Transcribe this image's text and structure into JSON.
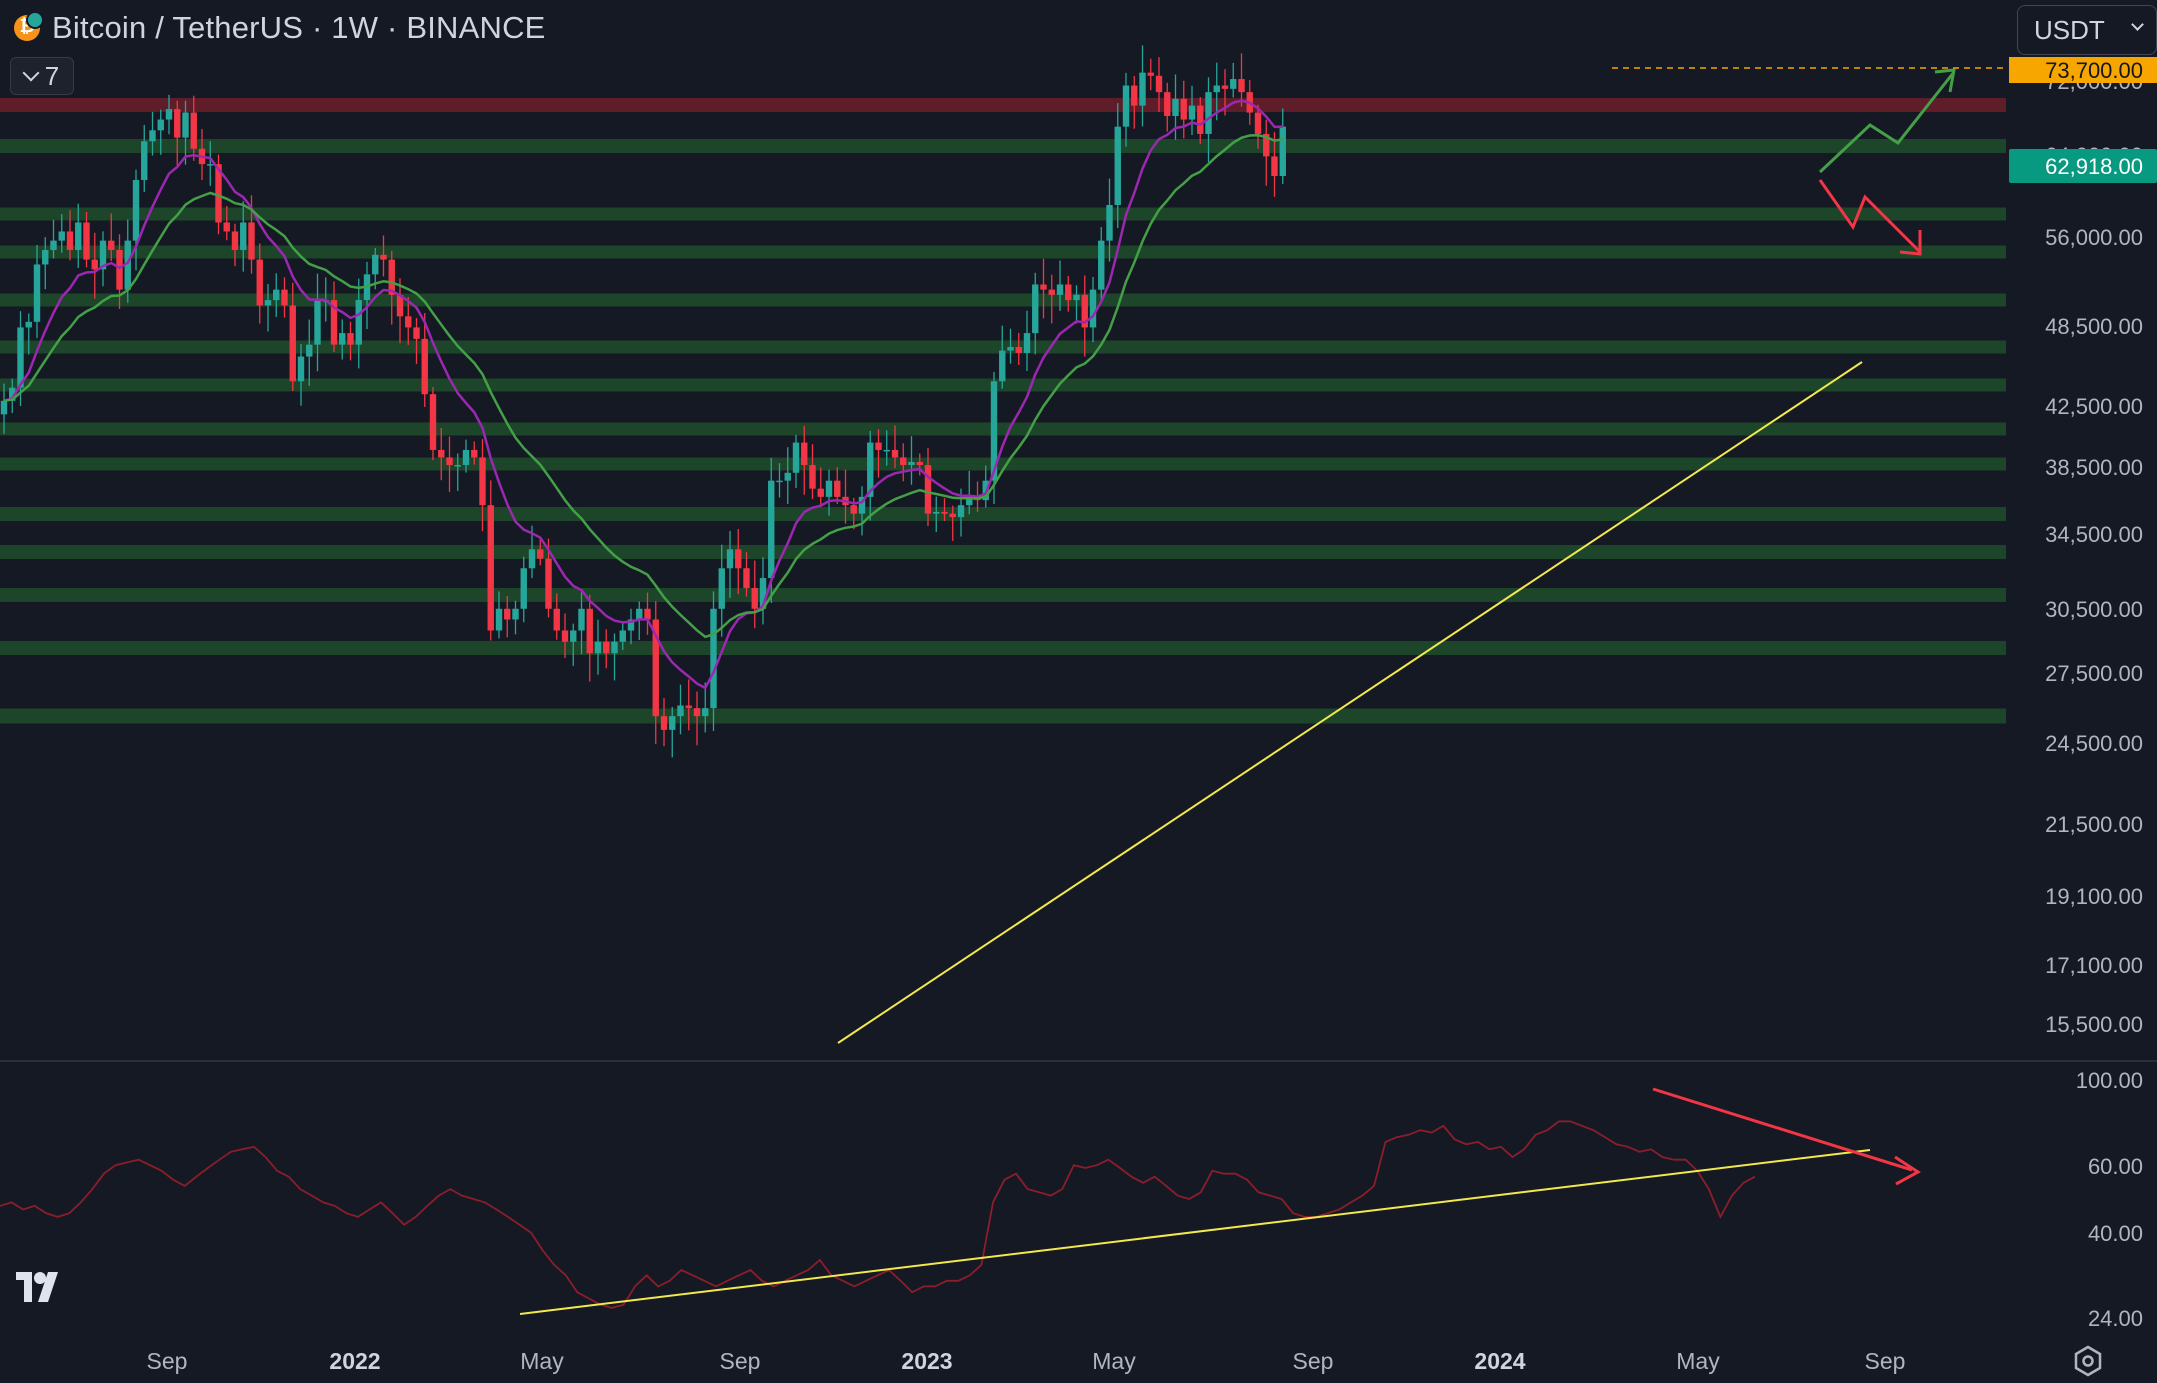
{
  "header": {
    "title": "Bitcoin / TetherUS · 1W · BINANCE",
    "indicator_count": "7",
    "currency": "USDT"
  },
  "colors": {
    "background": "#151924",
    "up_candle": "#26a69a",
    "down_candle": "#f23645",
    "ma_fast": "#9c27b0",
    "ma_slow": "#43a047",
    "support_zone": "#1e4a2a",
    "resistance_zone": "#6b1f2a",
    "trendline": "#f2e94e",
    "rsi_line": "#8b1e2a",
    "ath_label": "#f7a600",
    "last_price_label": "#089981"
  },
  "icons": {
    "coin": "bitcoin-icon",
    "collapse": "chevron-down-icon",
    "dropdown": "chevron-down-icon",
    "logo": "tradingview-logo-icon",
    "settings": "settings-icon"
  },
  "chart_data": [
    {
      "type": "candlestick",
      "title": "Bitcoin / TetherUS · 1W · BINANCE",
      "y_scale": "log",
      "ylim": [
        14500,
        76000
      ],
      "price_ticks": [
        "73,700.00",
        "72,000.00",
        "64,000.00",
        "56,000.00",
        "48,500.00",
        "42,500.00",
        "38,500.00",
        "34,500.00",
        "30,500.00",
        "27,500.00",
        "24,500.00",
        "21,500.00",
        "19,100.00",
        "17,100.00",
        "15,500.00"
      ],
      "x_ticks": [
        "Sep",
        "2022",
        "May",
        "Sep",
        "2023",
        "May",
        "Sep",
        "2024",
        "May",
        "Sep"
      ],
      "all_time_high": 73700,
      "all_time_high_label": "73,700.00",
      "last_price": 62918,
      "last_price_label": "62,918.00",
      "weekly_closes_approx": [
        [
          33500,
          34500,
          39500,
          40000,
          45500,
          47000,
          48000,
          49000,
          47000,
          50000,
          46000,
          45000,
          48000,
          47000,
          43000,
          48000,
          55000,
          60000,
          61500,
          63000,
          64500,
          60500,
          64000,
          59000,
          57000,
          57000,
          50000,
          49000,
          47000,
          50000,
          46000,
          41500,
          42000,
          43000,
          41500,
          35000,
          37000,
          38000,
          42000,
          42000,
          38000,
          39000,
          38000,
          42000,
          44500,
          46500,
          46000,
          42500,
          40500,
          39500,
          38500,
          34000,
          30000,
          29500,
          29000,
          29000,
          30000,
          29500,
          26500,
          20000,
          21000,
          20500,
          21000,
          23000,
          24000,
          23500,
          21000,
          20000,
          19500,
          20000,
          21000,
          19000,
          19500,
          19000,
          19500,
          20000,
          20500,
          21000,
          20500,
          16500,
          16000,
          16500,
          16900,
          16800,
          16500,
          16800,
          21000,
          23000,
          24000,
          23000,
          22000,
          21000,
          22500,
          28000,
          28000,
          28500,
          30500,
          29000,
          27500,
          27000,
          28000,
          27000,
          26500,
          26000,
          27000,
          30500,
          30000,
          30000,
          29500,
          29000,
          29200,
          29000,
          26000,
          26100,
          26000,
          25800,
          26500,
          27000,
          26800,
          28000,
          35000,
          37500,
          37800,
          37300,
          39000,
          43500,
          43000,
          42500,
          43500,
          42000,
          42500,
          39500,
          43000,
          48000,
          52000,
          62000,
          68000,
          65000,
          70000,
          69500,
          67000,
          63500,
          66000,
          63000,
          65000,
          61000,
          67000,
          68000,
          67500,
          69000,
          67000,
          64000,
          61000,
          58000,
          55500,
          62000
        ],
        "estimated from 2021-07 to 2024-07, weekly"
      ],
      "moving_averages": [
        "fast MA (purple)",
        "slow MA (green)"
      ]
    },
    {
      "type": "line",
      "ylim": [
        20,
        100
      ],
      "y_ticks": [
        "100.00",
        "60.00",
        "40.00",
        "24.00"
      ],
      "values_approx": [
        47,
        48,
        46,
        47,
        45,
        44,
        45,
        48,
        52,
        57,
        60,
        61,
        62,
        60,
        58,
        55,
        53,
        56,
        59,
        62,
        65,
        66,
        67,
        63,
        58,
        56,
        52,
        50,
        48,
        47,
        45,
        44,
        46,
        48,
        45,
        42,
        44,
        47,
        50,
        52,
        50,
        49,
        48,
        46,
        44,
        42,
        40,
        36,
        33,
        31,
        28,
        27,
        26,
        25.5,
        26,
        29,
        31,
        29,
        30,
        32,
        31,
        30,
        29,
        30,
        31,
        32,
        30,
        29,
        30,
        31,
        32,
        34,
        31,
        30,
        29,
        30,
        31,
        32,
        30,
        28,
        29,
        29,
        30,
        30,
        31,
        33,
        48,
        55,
        57,
        52,
        51,
        50,
        52,
        60,
        59,
        60,
        62,
        59,
        56,
        54,
        56,
        53,
        50,
        49,
        51,
        58,
        57,
        57,
        55,
        51,
        50,
        49,
        45,
        44,
        44,
        45,
        46,
        48,
        50,
        53,
        69,
        71,
        72,
        74,
        73,
        76,
        70,
        68,
        69,
        66,
        67,
        63,
        66,
        72,
        74,
        78,
        78,
        76,
        74,
        71,
        68,
        67,
        65,
        66,
        63,
        62,
        62,
        58,
        52,
        44,
        50,
        54,
        56
      ]
    }
  ]
}
